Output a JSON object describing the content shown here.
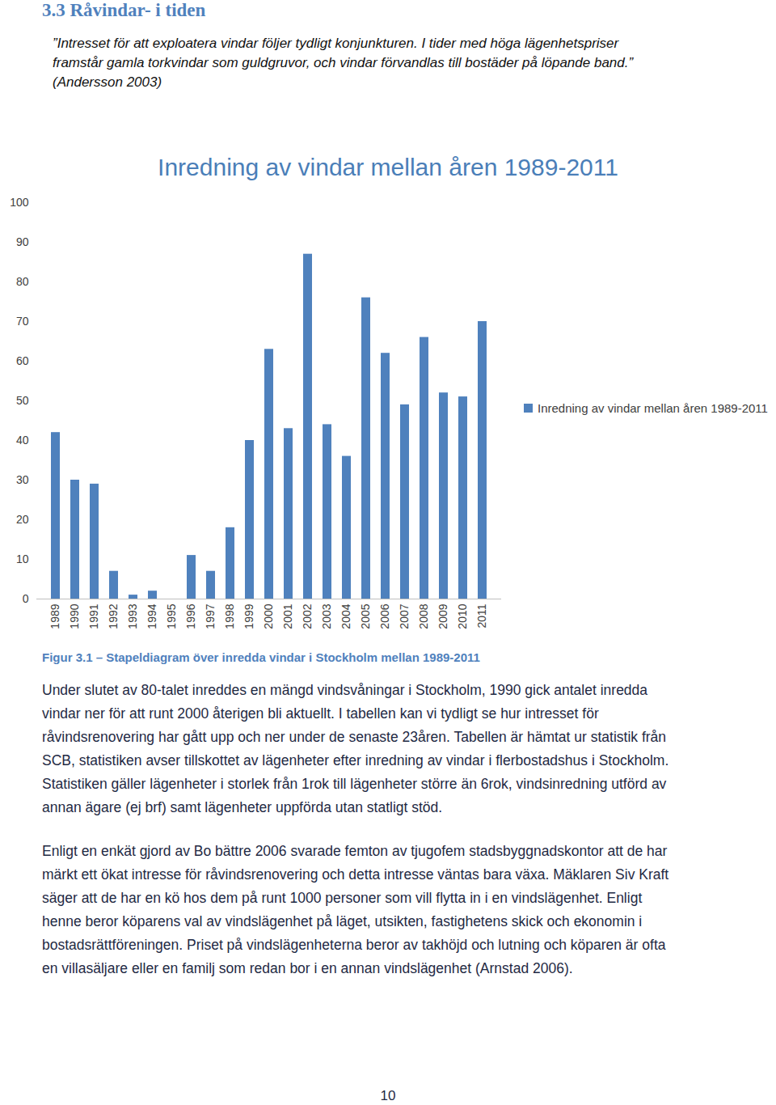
{
  "heading": "3.3 Råvindar- i tiden",
  "quote": [
    "”Intresset för att exploatera vindar följer tydligt konjunkturen. I tider med höga lägenhetspriser",
    "framstår gamla torkvindar som guldgruvor, och vindar förvandlas till bostäder på löpande band.”",
    "(Andersson 2003)"
  ],
  "chart_data": {
    "type": "bar",
    "title": "Inredning av vindar mellan åren 1989-2011",
    "categories": [
      "1989",
      "1990",
      "1991",
      "1992",
      "1993",
      "1994",
      "1995",
      "1996",
      "1997",
      "1998",
      "1999",
      "2000",
      "2001",
      "2002",
      "2003",
      "2004",
      "2005",
      "2006",
      "2007",
      "2008",
      "2009",
      "2010",
      "2011"
    ],
    "series": [
      {
        "name": "Inredning av vindar mellan åren 1989-2011",
        "color": "#4f81bd",
        "values": [
          42,
          30,
          29,
          7,
          1,
          2,
          0,
          11,
          7,
          18,
          40,
          63,
          43,
          87,
          44,
          36,
          76,
          62,
          49,
          66,
          52,
          51,
          70
        ]
      }
    ],
    "ylim": [
      0,
      100
    ],
    "yticks": [
      0,
      10,
      20,
      30,
      40,
      50,
      60,
      70,
      80,
      90,
      100
    ],
    "grid": false,
    "legend": "right"
  },
  "caption": "Figur 3.1 – Stapeldiagram över inredda vindar i Stockholm mellan 1989-2011",
  "paragraphs": [
    [
      "Under slutet av 80-talet inreddes en mängd vindsvåningar i Stockholm, 1990 gick antalet inredda",
      "vindar ner för att runt 2000 återigen bli aktuellt. I tabellen kan vi tydligt se hur intresset för",
      "råvindsrenovering har gått upp och ner under de senaste 23åren. Tabellen är hämtat ur statistik från",
      "SCB, statistiken avser tillskottet av lägenheter efter inredning av vindar i flerbostadshus i Stockholm.",
      "Statistiken gäller lägenheter i storlek från 1rok till lägenheter större än 6rok, vindsinredning utförd av",
      "annan ägare (ej brf) samt lägenheter uppförda utan statligt stöd."
    ],
    [
      "Enligt en enkät gjord av Bo bättre 2006 svarade femton av tjugofem stadsbyggnadskontor att de har",
      "märkt ett ökat intresse för råvindsrenovering och detta intresse väntas bara växa. Mäklaren Siv Kraft",
      "säger att de har en kö hos dem på runt 1000 personer som vill flytta in i en vindslägenhet. Enligt",
      "henne beror köparens val av vindslägenhet på läget, utsikten, fastighetens skick och ekonomin i",
      "bostadsrättföreningen. Priset på vindslägenheterna beror av takhöjd och lutning och köparen är ofta",
      "en villasäljare eller en familj som redan bor i en annan vindslägenhet (Arnstad 2006)."
    ]
  ],
  "page_number": "10"
}
